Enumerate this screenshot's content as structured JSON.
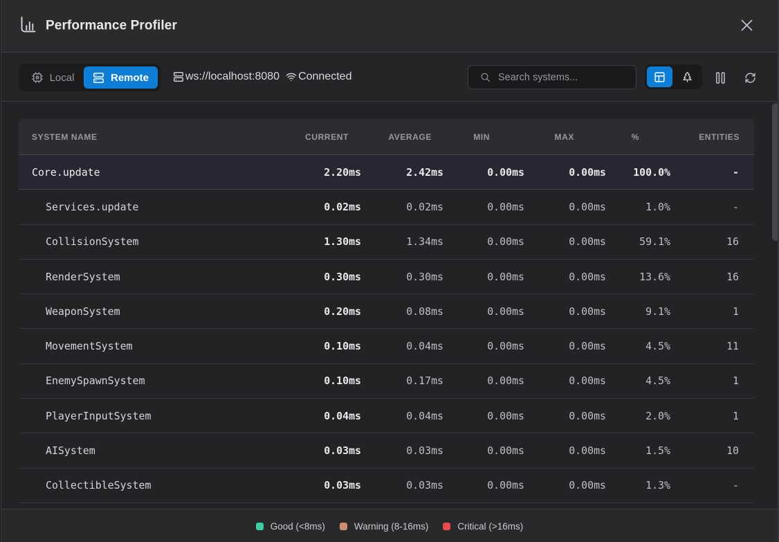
{
  "window": {
    "title": "Performance Profiler"
  },
  "toolbar": {
    "local_label": "Local",
    "remote_label": "Remote",
    "connection_url": "ws://localhost:8080",
    "connection_status": "Connected",
    "search_placeholder": "Search systems..."
  },
  "icons": {
    "header": "bar-chart-icon",
    "close": "close-icon",
    "local": "cpu-icon",
    "remote": "server-icon",
    "connection": "server-icon",
    "status": "wifi-icon",
    "search": "search-icon",
    "view_table": "table-icon",
    "view_tree": "tree-icon",
    "pause": "pause-icon",
    "refresh": "refresh-icon"
  },
  "table": {
    "columns": [
      "SYSTEM NAME",
      "CURRENT",
      "AVERAGE",
      "MIN",
      "MAX",
      "%",
      "ENTITIES"
    ],
    "rows": [
      {
        "name": "Core.update",
        "indent": 0,
        "highlight": true,
        "bold_all": true,
        "current": "2.20ms",
        "average": "2.42ms",
        "min": "0.00ms",
        "max": "0.00ms",
        "pct": "100.0%",
        "entities": "-"
      },
      {
        "name": "Services.update",
        "indent": 1,
        "highlight": false,
        "bold_all": false,
        "current": "0.02ms",
        "average": "0.02ms",
        "min": "0.00ms",
        "max": "0.00ms",
        "pct": "1.0%",
        "entities": "-"
      },
      {
        "name": "CollisionSystem",
        "indent": 1,
        "highlight": false,
        "bold_all": false,
        "current": "1.30ms",
        "average": "1.34ms",
        "min": "0.00ms",
        "max": "0.00ms",
        "pct": "59.1%",
        "entities": "16"
      },
      {
        "name": "RenderSystem",
        "indent": 1,
        "highlight": false,
        "bold_all": false,
        "current": "0.30ms",
        "average": "0.30ms",
        "min": "0.00ms",
        "max": "0.00ms",
        "pct": "13.6%",
        "entities": "16"
      },
      {
        "name": "WeaponSystem",
        "indent": 1,
        "highlight": false,
        "bold_all": false,
        "current": "0.20ms",
        "average": "0.08ms",
        "min": "0.00ms",
        "max": "0.00ms",
        "pct": "9.1%",
        "entities": "1"
      },
      {
        "name": "MovementSystem",
        "indent": 1,
        "highlight": false,
        "bold_all": false,
        "current": "0.10ms",
        "average": "0.04ms",
        "min": "0.00ms",
        "max": "0.00ms",
        "pct": "4.5%",
        "entities": "11"
      },
      {
        "name": "EnemySpawnSystem",
        "indent": 1,
        "highlight": false,
        "bold_all": false,
        "current": "0.10ms",
        "average": "0.17ms",
        "min": "0.00ms",
        "max": "0.00ms",
        "pct": "4.5%",
        "entities": "1"
      },
      {
        "name": "PlayerInputSystem",
        "indent": 1,
        "highlight": false,
        "bold_all": false,
        "current": "0.04ms",
        "average": "0.04ms",
        "min": "0.00ms",
        "max": "0.00ms",
        "pct": "2.0%",
        "entities": "1"
      },
      {
        "name": "AISystem",
        "indent": 1,
        "highlight": false,
        "bold_all": false,
        "current": "0.03ms",
        "average": "0.03ms",
        "min": "0.00ms",
        "max": "0.00ms",
        "pct": "1.5%",
        "entities": "10"
      },
      {
        "name": "CollectibleSystem",
        "indent": 1,
        "highlight": false,
        "bold_all": false,
        "current": "0.03ms",
        "average": "0.03ms",
        "min": "0.00ms",
        "max": "0.00ms",
        "pct": "1.3%",
        "entities": "-"
      }
    ]
  },
  "legend": [
    {
      "label": "Good (<8ms)",
      "color": "#3ecba5"
    },
    {
      "label": "Warning (8-16ms)",
      "color": "#cf8e70"
    },
    {
      "label": "Critical (>16ms)",
      "color": "#e84b4c"
    }
  ],
  "colors": {
    "accent_blue": "#0e7ed6",
    "header_bg": "#2b2b2d",
    "toolbar_bg": "#252528",
    "content_bg": "#232326",
    "table_header_bg": "#2d2d31",
    "highlight_row_bg": "#272734",
    "footer_bg": "#29292c",
    "good": "#3ecba5",
    "warning": "#cf8e70",
    "critical": "#e84b4c"
  }
}
